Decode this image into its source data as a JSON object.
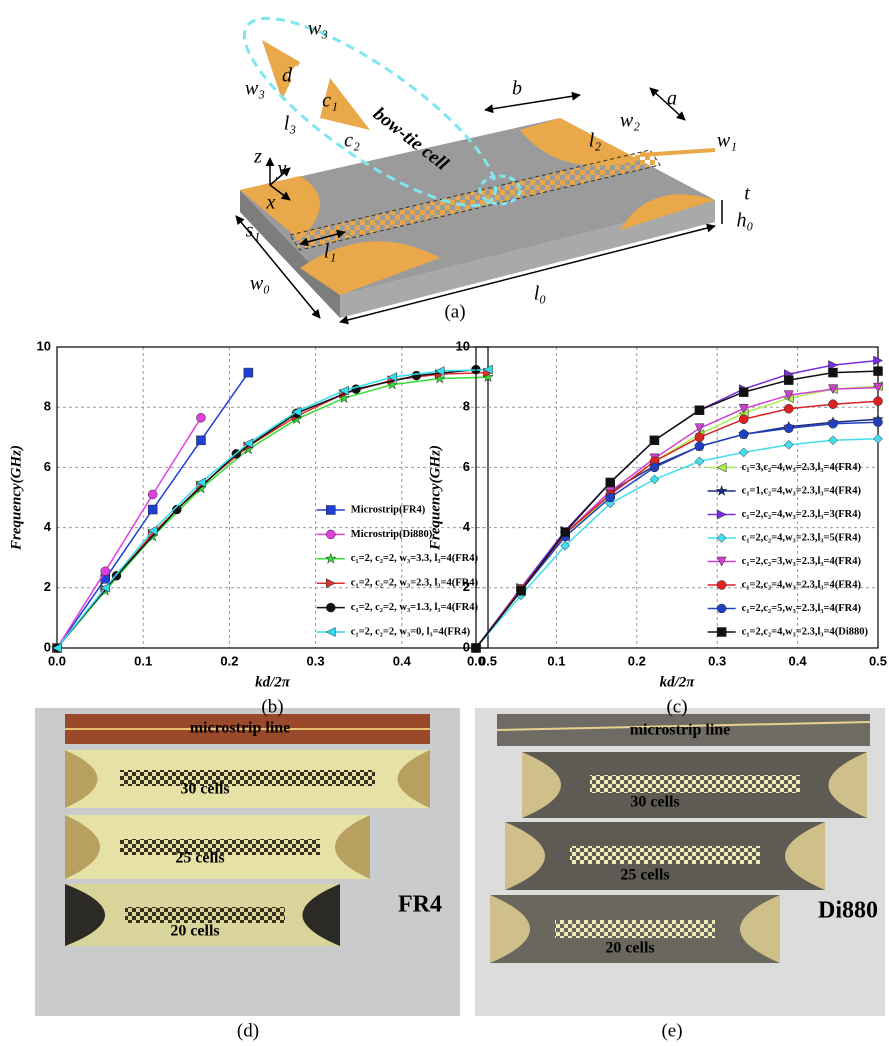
{
  "diagram": {
    "labels": [
      "w₃",
      "w₃",
      "d",
      "c₁",
      "l₃",
      "c₂",
      "bow-tie cell",
      "b",
      "a",
      "w₂",
      "w₁",
      "l₂",
      "z",
      "y",
      "x",
      "s₁",
      "l₁",
      "t",
      "h₀",
      "w₀",
      "l₀"
    ],
    "caption": "(a)"
  },
  "chart_data": [
    {
      "type": "line",
      "caption": "(b)",
      "x_label": "kd/2π",
      "y_label": "Frequency(GHz)",
      "xlim": [
        0,
        0.5
      ],
      "ylim": [
        0,
        10
      ],
      "xticks": [
        {
          "value": 0,
          "label": "0.0"
        },
        0.1,
        0.2,
        0.3,
        0.4,
        0.5
      ],
      "yticks": [
        0,
        2,
        4,
        6,
        8,
        10
      ],
      "grid": true,
      "legend": "lower right",
      "series": [
        {
          "name": "Microstrip(FR4)",
          "color": "#1f3fd6",
          "marker": "square",
          "x": [
            0,
            0.056,
            0.111,
            0.167,
            0.222
          ],
          "values": [
            0,
            2.3,
            4.6,
            6.9,
            9.15
          ]
        },
        {
          "name": "Microstrip(Di880)",
          "color": "#e040e0",
          "marker": "circle",
          "x": [
            0,
            0.056,
            0.111,
            0.167
          ],
          "values": [
            0,
            2.55,
            5.1,
            7.65
          ]
        },
        {
          "name": "c₁=2, c₂=2, w₃=3.3, l₃=4(FR4)",
          "color": "#33dd33",
          "marker": "star",
          "x": [
            0,
            0.056,
            0.111,
            0.167,
            0.222,
            0.278,
            0.333,
            0.389,
            0.444,
            0.5
          ],
          "values": [
            0,
            1.9,
            3.7,
            5.3,
            6.6,
            7.6,
            8.3,
            8.75,
            8.95,
            9.0
          ]
        },
        {
          "name": "c₁=2, c₂=2, w₃=2.3, l₃=4(FR4)",
          "color": "#e03030",
          "marker": "triangle-right",
          "x": [
            0,
            0.056,
            0.111,
            0.167,
            0.222,
            0.278,
            0.333,
            0.389,
            0.444,
            0.5
          ],
          "values": [
            0,
            1.95,
            3.8,
            5.4,
            6.7,
            7.7,
            8.45,
            8.9,
            9.1,
            9.15
          ]
        },
        {
          "name": "c₁=2, c₂=2, w₃=1.3, l₃=4(FR4)",
          "color": "#111111",
          "marker": "circle",
          "x": [
            0,
            0.069,
            0.139,
            0.208,
            0.278,
            0.347,
            0.417,
            0.486
          ],
          "values": [
            0,
            2.4,
            4.6,
            6.45,
            7.8,
            8.6,
            9.05,
            9.25
          ]
        },
        {
          "name": "c₁=2, c₂=2, w₃=0,   l₃=4(FR4)",
          "color": "#33ddee",
          "marker": "triangle-left",
          "x": [
            0,
            0.056,
            0.111,
            0.167,
            0.222,
            0.278,
            0.333,
            0.389,
            0.444,
            0.5
          ],
          "values": [
            0,
            2.0,
            3.9,
            5.5,
            6.8,
            7.85,
            8.55,
            9.0,
            9.2,
            9.25
          ]
        }
      ]
    },
    {
      "type": "line",
      "caption": "(c)",
      "x_label": "kd/2π",
      "y_label": "Frequency(GHz)",
      "xlim": [
        0,
        0.5
      ],
      "ylim": [
        0,
        10
      ],
      "xticks": [
        {
          "value": 0,
          "label": "0.0"
        },
        0.1,
        0.2,
        0.3,
        0.4,
        0.5
      ],
      "yticks": [
        0,
        2,
        4,
        6,
        8,
        10
      ],
      "grid": true,
      "legend": "lower right",
      "series": [
        {
          "name": "c₁=3,c₂=4,w₃=2.3,l₃=4(FR4)",
          "color": "#a8ee50",
          "marker": "triangle-left",
          "x": [
            0,
            0.056,
            0.111,
            0.167,
            0.222,
            0.278,
            0.333,
            0.389,
            0.444,
            0.5
          ],
          "values": [
            0,
            1.9,
            3.7,
            5.1,
            6.2,
            7.1,
            7.8,
            8.3,
            8.6,
            8.7
          ]
        },
        {
          "name": "c₁=1,c₂=4,w₃=2.3,l₃=4(FR4)",
          "color": "#1a2a80",
          "marker": "star",
          "x": [
            0,
            0.056,
            0.111,
            0.167,
            0.222,
            0.278,
            0.333,
            0.389,
            0.444,
            0.5
          ],
          "values": [
            0,
            1.95,
            3.8,
            5.2,
            6.05,
            6.7,
            7.1,
            7.35,
            7.5,
            7.6
          ]
        },
        {
          "name": "c₁=2,c₂=4,w₃=2.3,l₃=3(FR4)",
          "color": "#7a2ee0",
          "marker": "triangle-right",
          "x": [
            0,
            0.056,
            0.111,
            0.167,
            0.222,
            0.278,
            0.333,
            0.389,
            0.444,
            0.5
          ],
          "values": [
            0,
            2.0,
            3.9,
            5.5,
            6.9,
            7.9,
            8.6,
            9.1,
            9.4,
            9.55
          ]
        },
        {
          "name": "c₁=2,c₂=4,w₃=2.3,l₃=5(FR4)",
          "color": "#44ddee",
          "marker": "diamond",
          "x": [
            0,
            0.056,
            0.111,
            0.167,
            0.222,
            0.278,
            0.333,
            0.389,
            0.444,
            0.5
          ],
          "values": [
            0,
            1.75,
            3.4,
            4.8,
            5.6,
            6.2,
            6.5,
            6.75,
            6.9,
            6.95
          ]
        },
        {
          "name": "c₁=2,c₂=3,w₃=2.3,l₃=4(FR4)",
          "color": "#d040d0",
          "marker": "triangle-down",
          "x": [
            0,
            0.056,
            0.111,
            0.167,
            0.222,
            0.278,
            0.333,
            0.389,
            0.444,
            0.5
          ],
          "values": [
            0,
            1.95,
            3.8,
            5.2,
            6.3,
            7.3,
            7.95,
            8.4,
            8.6,
            8.65
          ]
        },
        {
          "name": "c₁=2,c₂=4,w₃=2.3,l₃=4(FR4)",
          "color": "#dd2222",
          "marker": "circle",
          "x": [
            0,
            0.056,
            0.111,
            0.167,
            0.222,
            0.278,
            0.333,
            0.389,
            0.444,
            0.5
          ],
          "values": [
            0,
            1.95,
            3.8,
            5.1,
            6.2,
            7.0,
            7.6,
            7.95,
            8.1,
            8.2
          ]
        },
        {
          "name": "c₁=2,c₂=5,w₃=2.3,l₃=4(FR4)",
          "color": "#2040c0",
          "marker": "circle",
          "x": [
            0,
            0.056,
            0.111,
            0.167,
            0.222,
            0.278,
            0.333,
            0.389,
            0.444,
            0.5
          ],
          "values": [
            0,
            1.9,
            3.7,
            5.0,
            6.0,
            6.7,
            7.1,
            7.3,
            7.45,
            7.5
          ]
        },
        {
          "name": "c₁=2,c₂=4,w₃=2.3,l₃=4(Di880)",
          "color": "#111111",
          "marker": "square",
          "x": [
            0,
            0.056,
            0.111,
            0.167,
            0.222,
            0.278,
            0.333,
            0.389,
            0.444,
            0.5
          ],
          "values": [
            0,
            1.9,
            3.85,
            5.5,
            6.9,
            7.9,
            8.5,
            8.9,
            9.15,
            9.2
          ]
        }
      ]
    }
  ],
  "photos": [
    {
      "board_labels": [
        "microstrip line",
        "30 cells",
        "25 cells",
        "20 cells"
      ],
      "material": "FR4",
      "caption": "(d)"
    },
    {
      "board_labels": [
        "microstrip line",
        "30 cells",
        "25 cells",
        "20 cells"
      ],
      "material": "Di880",
      "caption": "(e)"
    }
  ]
}
